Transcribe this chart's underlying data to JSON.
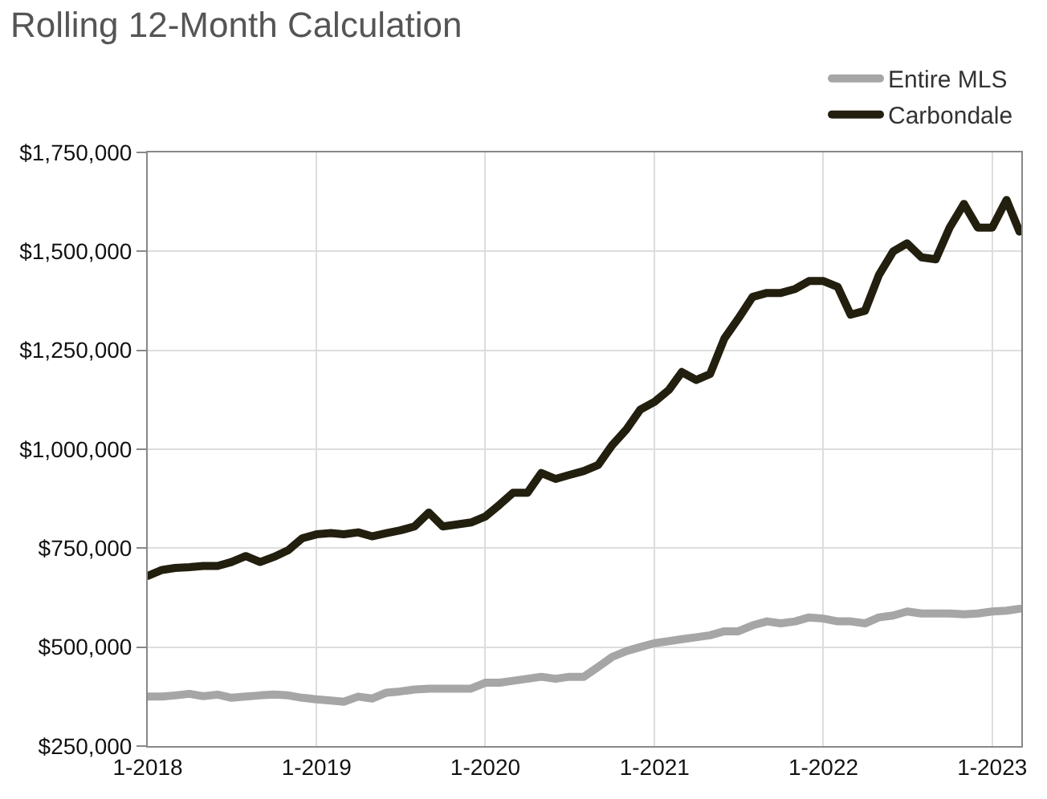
{
  "chart_data": {
    "type": "line",
    "title": "Rolling 12-Month Calculation",
    "x": [
      "2018-01",
      "2018-02",
      "2018-03",
      "2018-04",
      "2018-05",
      "2018-06",
      "2018-07",
      "2018-08",
      "2018-09",
      "2018-10",
      "2018-11",
      "2018-12",
      "2019-01",
      "2019-02",
      "2019-03",
      "2019-04",
      "2019-05",
      "2019-06",
      "2019-07",
      "2019-08",
      "2019-09",
      "2019-10",
      "2019-11",
      "2019-12",
      "2020-01",
      "2020-02",
      "2020-03",
      "2020-04",
      "2020-05",
      "2020-06",
      "2020-07",
      "2020-08",
      "2020-09",
      "2020-10",
      "2020-11",
      "2020-12",
      "2021-01",
      "2021-02",
      "2021-03",
      "2021-04",
      "2021-05",
      "2021-06",
      "2021-07",
      "2021-08",
      "2021-09",
      "2021-10",
      "2021-11",
      "2021-12",
      "2022-01",
      "2022-02",
      "2022-03",
      "2022-04",
      "2022-05",
      "2022-06",
      "2022-07",
      "2022-08",
      "2022-09",
      "2022-10",
      "2022-11",
      "2022-12",
      "2023-01",
      "2023-02",
      "2023-03"
    ],
    "series": [
      {
        "name": "Entire MLS",
        "color": "#a6a6a6",
        "values": [
          375000,
          375000,
          378000,
          382000,
          376000,
          380000,
          372000,
          375000,
          378000,
          380000,
          378000,
          372000,
          368000,
          365000,
          362000,
          375000,
          370000,
          385000,
          388000,
          393000,
          395000,
          395000,
          395000,
          395000,
          410000,
          410000,
          415000,
          420000,
          425000,
          420000,
          425000,
          425000,
          450000,
          475000,
          490000,
          500000,
          510000,
          515000,
          520000,
          525000,
          530000,
          540000,
          540000,
          555000,
          565000,
          560000,
          565000,
          575000,
          572000,
          565000,
          565000,
          560000,
          575000,
          580000,
          590000,
          585000,
          585000,
          585000,
          583000,
          585000,
          590000,
          592000,
          597000
        ]
      },
      {
        "name": "Carbondale",
        "color": "#231f0f",
        "values": [
          680000,
          695000,
          700000,
          702000,
          705000,
          705000,
          715000,
          730000,
          715000,
          728000,
          745000,
          775000,
          785000,
          788000,
          785000,
          790000,
          780000,
          788000,
          795000,
          805000,
          840000,
          805000,
          810000,
          815000,
          830000,
          860000,
          890000,
          890000,
          940000,
          925000,
          935000,
          945000,
          960000,
          1010000,
          1050000,
          1100000,
          1120000,
          1150000,
          1195000,
          1175000,
          1190000,
          1280000,
          1330000,
          1385000,
          1395000,
          1395000,
          1405000,
          1425000,
          1425000,
          1410000,
          1340000,
          1350000,
          1440000,
          1500000,
          1520000,
          1485000,
          1480000,
          1560000,
          1620000,
          1560000,
          1560000,
          1630000,
          1550000
        ]
      }
    ],
    "xlim": [
      "2018-01-01",
      "2023-03-05"
    ],
    "xticks": [
      {
        "value": "2018-01-01",
        "label": "1-2018"
      },
      {
        "value": "2019-01-01",
        "label": "1-2019"
      },
      {
        "value": "2020-01-01",
        "label": "1-2020"
      },
      {
        "value": "2021-01-01",
        "label": "1-2021"
      },
      {
        "value": "2022-01-01",
        "label": "1-2022"
      },
      {
        "value": "2023-01-01",
        "label": "1-2023"
      }
    ],
    "ylim": [
      250000,
      1750000
    ],
    "yticks": [
      {
        "value": 250000,
        "label": "$250,000"
      },
      {
        "value": 500000,
        "label": "$500,000"
      },
      {
        "value": 750000,
        "label": "$750,000"
      },
      {
        "value": 1000000,
        "label": "$1,000,000"
      },
      {
        "value": 1250000,
        "label": "$1,250,000"
      },
      {
        "value": 1500000,
        "label": "$1,500,000"
      },
      {
        "value": 1750000,
        "label": "$1,750,000"
      }
    ],
    "grid": true,
    "legend": "top right",
    "marker": "none",
    "line_style": "solid"
  }
}
